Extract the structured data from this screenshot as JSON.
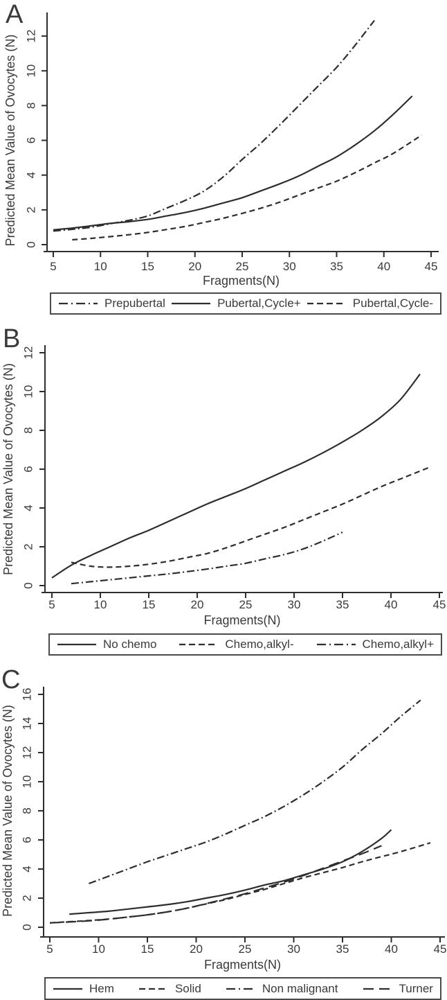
{
  "figure": {
    "line_color": "#2d2d2d",
    "text_color": "#3a3a3a",
    "legend_border_color": "#4a4a4a",
    "background": "#ffffff"
  },
  "chart_data": [
    {
      "type": "line",
      "panel_label": "A",
      "xlabel": "Fragments(N)",
      "ylabel": "Predicted Mean Value of Ovocytes (N)",
      "xlim": [
        5,
        45
      ],
      "ylim": [
        0,
        12
      ],
      "xticks": [
        5,
        10,
        15,
        20,
        25,
        30,
        35,
        40,
        45
      ],
      "yticks": [
        0,
        2,
        4,
        6,
        8,
        10,
        12
      ],
      "grid": false,
      "legend_position": "bottom-box",
      "series": [
        {
          "name": "Prepubertal",
          "style": "dashdot",
          "points": [
            [
              5,
              0.78
            ],
            [
              7,
              0.88
            ],
            [
              9,
              1.0
            ],
            [
              11,
              1.2
            ],
            [
              13,
              1.4
            ],
            [
              15,
              1.65
            ],
            [
              17,
              2.1
            ],
            [
              19,
              2.55
            ],
            [
              21,
              3.1
            ],
            [
              23,
              3.9
            ],
            [
              25,
              4.9
            ],
            [
              27,
              5.85
            ],
            [
              29,
              6.9
            ],
            [
              31,
              8.0
            ],
            [
              33,
              9.1
            ],
            [
              35,
              10.2
            ],
            [
              37,
              11.5
            ],
            [
              39,
              12.9
            ]
          ]
        },
        {
          "name": "Pubertal,Cycle+",
          "style": "solid",
          "points": [
            [
              5,
              0.85
            ],
            [
              7,
              0.95
            ],
            [
              9,
              1.08
            ],
            [
              11,
              1.22
            ],
            [
              13,
              1.32
            ],
            [
              15,
              1.45
            ],
            [
              17,
              1.65
            ],
            [
              19,
              1.85
            ],
            [
              21,
              2.1
            ],
            [
              23,
              2.4
            ],
            [
              25,
              2.7
            ],
            [
              27,
              3.1
            ],
            [
              29,
              3.5
            ],
            [
              31,
              3.95
            ],
            [
              33,
              4.5
            ],
            [
              35,
              5.05
            ],
            [
              37,
              5.75
            ],
            [
              39,
              6.55
            ],
            [
              41,
              7.5
            ],
            [
              43,
              8.55
            ]
          ]
        },
        {
          "name": "Pubertal,Cycle-",
          "style": "dash",
          "points": [
            [
              7,
              0.28
            ],
            [
              9,
              0.36
            ],
            [
              11,
              0.46
            ],
            [
              13,
              0.57
            ],
            [
              15,
              0.7
            ],
            [
              17,
              0.87
            ],
            [
              19,
              1.05
            ],
            [
              21,
              1.28
            ],
            [
              23,
              1.52
            ],
            [
              25,
              1.8
            ],
            [
              27,
              2.1
            ],
            [
              29,
              2.45
            ],
            [
              31,
              2.85
            ],
            [
              33,
              3.25
            ],
            [
              35,
              3.65
            ],
            [
              37,
              4.15
            ],
            [
              39,
              4.7
            ],
            [
              41,
              5.25
            ],
            [
              44,
              6.3
            ]
          ]
        }
      ]
    },
    {
      "type": "line",
      "panel_label": "B",
      "xlabel": "Fragments(N)",
      "ylabel": "Predicted Mean Value of Ovocytes (N)",
      "xlim": [
        5,
        45
      ],
      "ylim": [
        0,
        12
      ],
      "xticks": [
        5,
        10,
        15,
        20,
        25,
        30,
        35,
        40,
        45
      ],
      "yticks": [
        0,
        2,
        4,
        6,
        8,
        10,
        12
      ],
      "grid": false,
      "legend_position": "bottom-box",
      "series": [
        {
          "name": "No chemo",
          "style": "solid",
          "points": [
            [
              5,
              0.4
            ],
            [
              7,
              1.05
            ],
            [
              9,
              1.55
            ],
            [
              11,
              2.0
            ],
            [
              13,
              2.45
            ],
            [
              15,
              2.85
            ],
            [
              17,
              3.3
            ],
            [
              19,
              3.75
            ],
            [
              21,
              4.2
            ],
            [
              23,
              4.6
            ],
            [
              25,
              5.0
            ],
            [
              27,
              5.45
            ],
            [
              29,
              5.9
            ],
            [
              31,
              6.35
            ],
            [
              33,
              6.85
            ],
            [
              35,
              7.4
            ],
            [
              37,
              8.0
            ],
            [
              39,
              8.7
            ],
            [
              41,
              9.6
            ],
            [
              43,
              10.9
            ]
          ]
        },
        {
          "name": "Chemo,alkyl-",
          "style": "dash",
          "points": [
            [
              7,
              1.2
            ],
            [
              9,
              1.0
            ],
            [
              11,
              0.95
            ],
            [
              13,
              1.0
            ],
            [
              15,
              1.1
            ],
            [
              17,
              1.25
            ],
            [
              19,
              1.45
            ],
            [
              21,
              1.65
            ],
            [
              23,
              1.95
            ],
            [
              25,
              2.3
            ],
            [
              27,
              2.65
            ],
            [
              29,
              3.0
            ],
            [
              31,
              3.4
            ],
            [
              33,
              3.8
            ],
            [
              35,
              4.2
            ],
            [
              37,
              4.65
            ],
            [
              39,
              5.1
            ],
            [
              41,
              5.5
            ],
            [
              44,
              6.1
            ]
          ]
        },
        {
          "name": "Chemo,alkyl+",
          "style": "dashdot",
          "points": [
            [
              7,
              0.1
            ],
            [
              9,
              0.2
            ],
            [
              11,
              0.3
            ],
            [
              13,
              0.4
            ],
            [
              15,
              0.5
            ],
            [
              17,
              0.6
            ],
            [
              19,
              0.72
            ],
            [
              21,
              0.85
            ],
            [
              23,
              1.0
            ],
            [
              25,
              1.15
            ],
            [
              27,
              1.38
            ],
            [
              29,
              1.6
            ],
            [
              31,
              1.9
            ],
            [
              33,
              2.3
            ],
            [
              35,
              2.75
            ]
          ]
        }
      ]
    },
    {
      "type": "line",
      "panel_label": "C",
      "xlabel": "Fragments(N)",
      "ylabel": "Predicted Mean Value of Ovocytes (N)",
      "xlim": [
        5,
        45
      ],
      "ylim": [
        0,
        16
      ],
      "xticks": [
        5,
        10,
        15,
        20,
        25,
        30,
        35,
        40,
        45
      ],
      "yticks": [
        0,
        2,
        4,
        6,
        8,
        10,
        12,
        14,
        16
      ],
      "grid": false,
      "legend_position": "bottom-box",
      "series": [
        {
          "name": "Hem",
          "style": "solid",
          "points": [
            [
              7,
              0.9
            ],
            [
              9,
              1.0
            ],
            [
              11,
              1.1
            ],
            [
              13,
              1.25
            ],
            [
              15,
              1.4
            ],
            [
              17,
              1.55
            ],
            [
              19,
              1.75
            ],
            [
              21,
              2.0
            ],
            [
              23,
              2.25
            ],
            [
              25,
              2.55
            ],
            [
              27,
              2.9
            ],
            [
              29,
              3.2
            ],
            [
              31,
              3.6
            ],
            [
              33,
              4.0
            ],
            [
              35,
              4.5
            ],
            [
              37,
              5.2
            ],
            [
              39,
              6.1
            ],
            [
              40,
              6.7
            ]
          ]
        },
        {
          "name": "Solid",
          "style": "dash",
          "points": [
            [
              5,
              0.3
            ],
            [
              7,
              0.38
            ],
            [
              9,
              0.46
            ],
            [
              11,
              0.56
            ],
            [
              13,
              0.7
            ],
            [
              15,
              0.85
            ],
            [
              17,
              1.05
            ],
            [
              19,
              1.3
            ],
            [
              21,
              1.6
            ],
            [
              23,
              1.9
            ],
            [
              25,
              2.25
            ],
            [
              27,
              2.6
            ],
            [
              29,
              3.0
            ],
            [
              31,
              3.4
            ],
            [
              33,
              3.75
            ],
            [
              35,
              4.1
            ],
            [
              37,
              4.5
            ],
            [
              39,
              4.85
            ],
            [
              41,
              5.2
            ],
            [
              44,
              5.8
            ]
          ]
        },
        {
          "name": "Non malignant",
          "style": "dashdot",
          "points": [
            [
              9,
              3.0
            ],
            [
              11,
              3.5
            ],
            [
              13,
              4.0
            ],
            [
              15,
              4.5
            ],
            [
              17,
              4.95
            ],
            [
              19,
              5.4
            ],
            [
              21,
              5.85
            ],
            [
              23,
              6.4
            ],
            [
              25,
              7.0
            ],
            [
              27,
              7.6
            ],
            [
              29,
              8.3
            ],
            [
              31,
              9.1
            ],
            [
              33,
              10.0
            ],
            [
              35,
              11.0
            ],
            [
              37,
              12.2
            ],
            [
              39,
              13.3
            ],
            [
              41,
              14.5
            ],
            [
              43,
              15.6
            ]
          ]
        },
        {
          "name": "Turner",
          "style": "longdash",
          "points": [
            [
              5,
              0.3
            ],
            [
              7,
              0.36
            ],
            [
              9,
              0.44
            ],
            [
              11,
              0.55
            ],
            [
              13,
              0.7
            ],
            [
              15,
              0.85
            ],
            [
              17,
              1.05
            ],
            [
              19,
              1.3
            ],
            [
              21,
              1.62
            ],
            [
              23,
              1.95
            ],
            [
              25,
              2.3
            ],
            [
              27,
              2.7
            ],
            [
              29,
              3.1
            ],
            [
              31,
              3.55
            ],
            [
              33,
              4.05
            ],
            [
              35,
              4.55
            ],
            [
              37,
              5.05
            ],
            [
              39,
              5.6
            ]
          ]
        }
      ]
    }
  ]
}
